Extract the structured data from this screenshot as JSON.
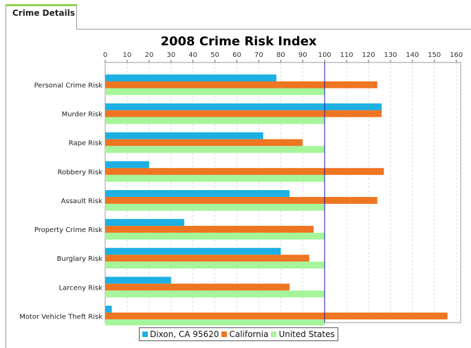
{
  "tab": {
    "label": "Crime Details"
  },
  "chart_data": {
    "type": "bar",
    "orientation": "horizontal",
    "title": "2008 Crime Risk Index",
    "xlabel": "",
    "ylabel": "",
    "xlim": [
      0,
      162
    ],
    "x_ticks": [
      0,
      10,
      20,
      30,
      40,
      50,
      60,
      70,
      80,
      90,
      100,
      110,
      120,
      130,
      140,
      150,
      160
    ],
    "x_axis_position": "top",
    "grid": true,
    "reference_line": 100,
    "legend_position": "bottom",
    "categories": [
      "Personal Crime Risk",
      "Murder Risk",
      "Rape Risk",
      "Robbery Risk",
      "Assault Risk",
      "Property Crime Risk",
      "Burglary Risk",
      "Larceny Risk",
      "Motor Vehicle Theft Risk"
    ],
    "series": [
      {
        "name": "Dixon, CA 95620",
        "color": "#1cb0e3",
        "values": [
          78,
          126,
          72,
          20,
          84,
          36,
          80,
          30,
          3
        ]
      },
      {
        "name": "California",
        "color": "#ee7521",
        "values": [
          124,
          126,
          90,
          127,
          124,
          95,
          93,
          84,
          156
        ]
      },
      {
        "name": "United States",
        "color": "#a6f59a",
        "values": [
          100,
          100,
          100,
          100,
          100,
          100,
          100,
          100,
          100
        ]
      }
    ]
  }
}
